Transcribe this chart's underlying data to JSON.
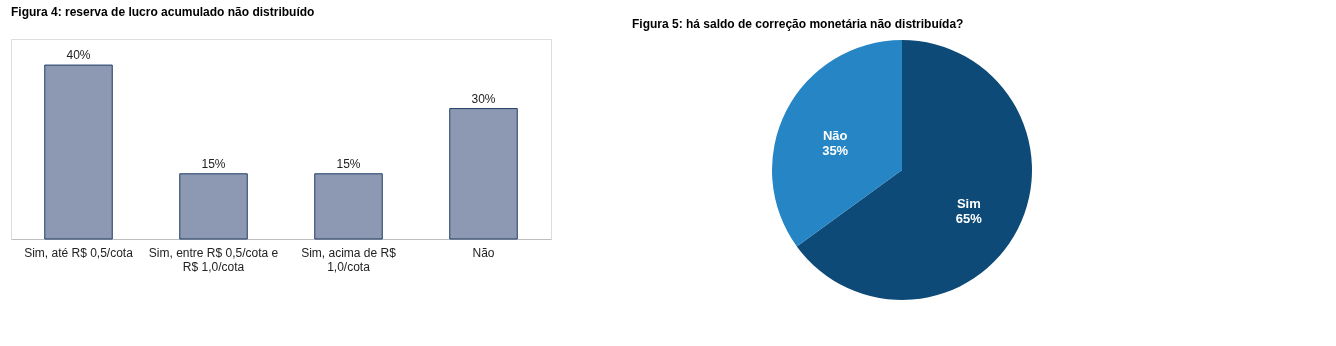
{
  "chart_data": [
    {
      "type": "bar",
      "title": "Figura 4: reserva de lucro acumulado não distribuído",
      "categories": [
        "Sim, até R$ 0,5/cota",
        "Sim, entre R$ 0,5/cota e R$ 1,0/cota",
        "Sim, acima de R$ 1,0/cota",
        "Não"
      ],
      "values": [
        40,
        15,
        15,
        30
      ],
      "value_labels": [
        "40%",
        "15%",
        "15%",
        "30%"
      ],
      "color": "#8d99b2",
      "tick_labels": "x"
    },
    {
      "type": "pie",
      "title": "Figura 5: há saldo de correção monetária não distribuída?",
      "categories": [
        "Sim",
        "Não"
      ],
      "values": [
        65,
        35
      ],
      "value_labels": [
        "65%",
        "35%"
      ],
      "colors": [
        "#0d4a77",
        "#2585c5"
      ],
      "legend": false
    }
  ]
}
